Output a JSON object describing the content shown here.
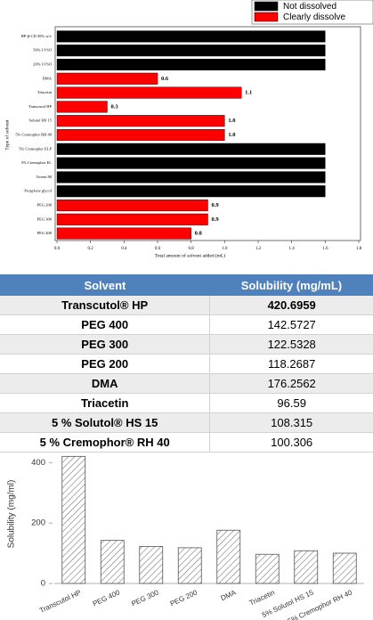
{
  "chart_data": [
    {
      "type": "barh",
      "y_label": "Type of solvent",
      "x_label": "Total amount of solvent added (mL)",
      "categories": [
        "HP-β-CD 50% w/v",
        "50% LVSO",
        "20% LVSO",
        "DMA",
        "Triacetin",
        "Transcutol HP",
        "Solutol HS 15",
        "5% Cremophor RH 40",
        "5% Cremophor ELP",
        "5% Cremophor EL",
        "Tween 80",
        "Propylene glycol",
        "PEG 200",
        "PEG 300",
        "PEG 400"
      ],
      "series": [
        {
          "name": "Not dissolved",
          "color": "#000000",
          "values": [
            1.6,
            1.6,
            1.6,
            null,
            null,
            null,
            null,
            null,
            1.6,
            1.6,
            1.6,
            1.6,
            null,
            null,
            null
          ]
        },
        {
          "name": "Clearly dissolve",
          "color": "#ff0000",
          "values": [
            null,
            null,
            null,
            0.6,
            1.1,
            0.3,
            1,
            1,
            null,
            null,
            null,
            null,
            0.9,
            0.9,
            0.8
          ],
          "value_labels": [
            null,
            null,
            null,
            "0.6",
            "1.1",
            "0.3",
            "1.0",
            "1.0",
            null,
            null,
            null,
            null,
            "0.9",
            "0.9",
            "0.8"
          ]
        }
      ],
      "xlim": [
        0,
        1.8
      ],
      "xticks": [
        {
          "value": 0,
          "label": "0.0"
        },
        {
          "value": 0.2,
          "label": "0.2"
        },
        {
          "value": 0.4,
          "label": "0.4"
        },
        {
          "value": 0.6,
          "label": "0.6"
        },
        {
          "value": 0.8,
          "label": "0.8"
        },
        {
          "value": 1,
          "label": "1.0"
        },
        {
          "value": 1.2,
          "label": "1.2"
        },
        {
          "value": 1.4,
          "label": "1.4"
        },
        {
          "value": 1.6,
          "label": "1.6"
        },
        {
          "value": 1.8,
          "label": "1.8"
        }
      ],
      "legend": "top-right"
    },
    {
      "type": "bar",
      "y_label": "Solubility (mg/ml)",
      "categories": [
        "Transcutol HP",
        "PEG 400",
        "PEG 300",
        "PEG 200",
        "DMA",
        "Triacetin",
        "5% Solutol HS 15",
        "5% Cremophor RH 40"
      ],
      "values": [
        420.6959,
        142.5727,
        122.5328,
        118.2687,
        176.2562,
        96.59,
        108.315,
        100.306
      ],
      "ylim": [
        0,
        460
      ],
      "yticks": [
        0,
        200,
        400
      ],
      "color": "#555555",
      "hatch": true
    }
  ],
  "table": {
    "header": [
      "Solvent",
      "Solubility (mg/mL)"
    ],
    "rows": [
      [
        "Transcutol® HP",
        "420.6959"
      ],
      [
        "PEG 400",
        "142.5727"
      ],
      [
        "PEG 300",
        "122.5328"
      ],
      [
        "PEG 200",
        "118.2687"
      ],
      [
        "DMA",
        "176.2562"
      ],
      [
        "Triacetin",
        "96.59"
      ],
      [
        "5 % Solutol® HS 15",
        "108.315"
      ],
      [
        "5 % Cremophor® RH 40",
        "100.306"
      ]
    ]
  }
}
